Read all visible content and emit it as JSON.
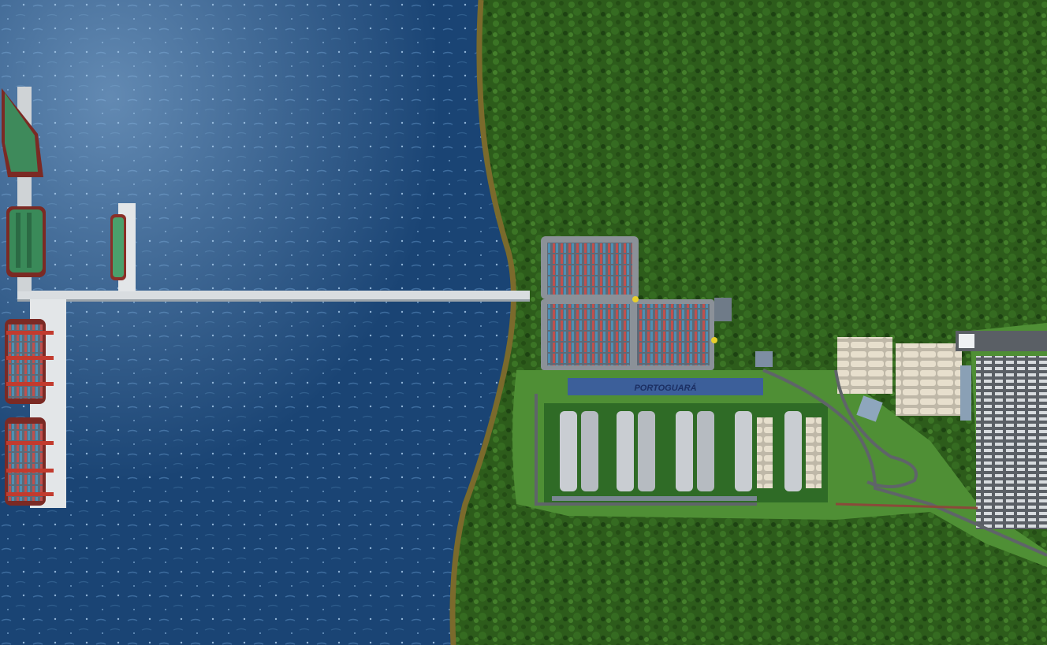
{
  "scene": {
    "description_type": "aerial-port-rendering",
    "building_sign": "PORTOGUARÁ"
  },
  "colors": {
    "water_dark": "#163d6b",
    "water_light": "#2e5f91",
    "forest_dark": "#1f4a14",
    "forest_light": "#3f7a26",
    "shore": "#7a6a2c",
    "lawn": "#4f8f35",
    "pier": "#d9dde0",
    "roof": "#c9cdd2",
    "sign": "#3c5f9a",
    "sign_text": "#1c2f63"
  }
}
